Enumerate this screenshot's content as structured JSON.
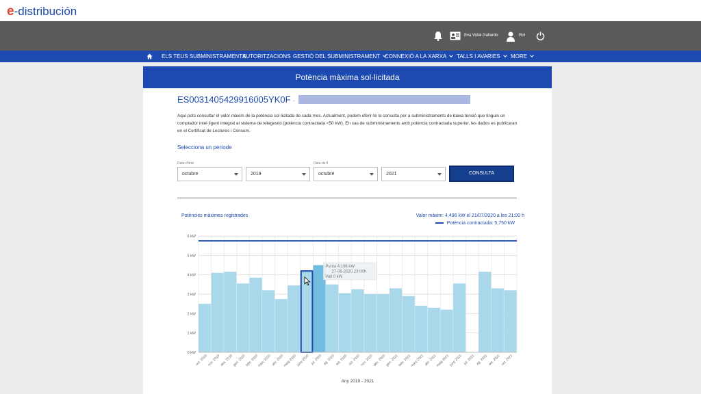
{
  "brand": {
    "logo_e": "e",
    "logo_text": "-distribución"
  },
  "topbar": {
    "user_name": "Eva Vidal Gallardo",
    "role_label": "Rol"
  },
  "nav": {
    "items": [
      {
        "label": "ELS TEUS SUBMINISTRAMENTS",
        "dropdown": false
      },
      {
        "label": "AUTORITZACIONS",
        "dropdown": false
      },
      {
        "label": "GESTIÓ DEL SUBMINISTRAMENT",
        "dropdown": true
      },
      {
        "label": "CONNEXIÓ A LA XARXA",
        "dropdown": true
      },
      {
        "label": "TALLS I AVARIES",
        "dropdown": true
      },
      {
        "label": "MORE",
        "dropdown": true
      }
    ]
  },
  "page": {
    "title": "Potència màxima sol·licitada",
    "supply_id": "ES0031405429916005YK0F",
    "supply_sep": "-",
    "intro": "Aquí pots consultar el valor màxim de la potència sol·licitada de cada mes. Actualment, podem oferir-te la consulta per a subministraments de baixa tensió que tinguin un comptador intel·ligent integrat al sistema de telegestió (potència contractada <50 kW). En cas de subministraments amb potència contractada superior, les dades es publicaran en el Certificat de Lectures i Consum.",
    "select_period": "Selecciona un període"
  },
  "filters": {
    "start_label": "Data d'inici",
    "end_label": "Data de fi",
    "start_month": "octubre",
    "start_year": "2019",
    "end_month": "octubre",
    "end_year": "2021",
    "submit_label": "CONSULTA"
  },
  "chart_data": {
    "type": "bar",
    "title": "Potències màximes registrades",
    "max_value_text": "Valor màxim: 4,496 kW el 21/07/2020 a les 21:00 h",
    "legend": "Potència contractada: 5,750 kW",
    "xlabel": "Any 2019 - 2021",
    "ylim": [
      0,
      6
    ],
    "y_ticks": [
      "0 kW",
      "1 kW",
      "2 kW",
      "3 kW",
      "4 kW",
      "5 kW",
      "6 kW"
    ],
    "contracted_power": 5.75,
    "categories": [
      "oct. 2019",
      "nov. 2019",
      "des. 2019",
      "gen. 2020",
      "febr. 2020",
      "març 2020",
      "abr. 2020",
      "maig 2020",
      "juny 2020",
      "jul. 2020",
      "ag. 2020",
      "set. 2020",
      "oct. 2020",
      "nov. 2020",
      "des. 2020",
      "gen. 2021",
      "febr. 2021",
      "març 2021",
      "abr. 2021",
      "maig 2021",
      "juny 2021",
      "jul. 2021",
      "ag. 2021",
      "set. 2021",
      "oct. 2021"
    ],
    "values": [
      2.5,
      4.1,
      4.15,
      3.55,
      3.85,
      3.2,
      2.75,
      3.45,
      4.196,
      4.496,
      3.5,
      3.05,
      3.25,
      3.0,
      3.0,
      3.3,
      2.9,
      2.4,
      2.3,
      2.2,
      3.55,
      0,
      4.15,
      3.3,
      3.2
    ],
    "selected_index": 8,
    "tooltip": {
      "line1": "Punta 4,196 kW",
      "line2": "27-06-2020 23:00h",
      "line3": "Vall 0 kW"
    },
    "colors": {
      "bar": "#a9d8ea",
      "bar_hover": "#72bcdf",
      "selected_stroke": "#1c4ab0",
      "contract_line": "#1c4ab0"
    }
  }
}
